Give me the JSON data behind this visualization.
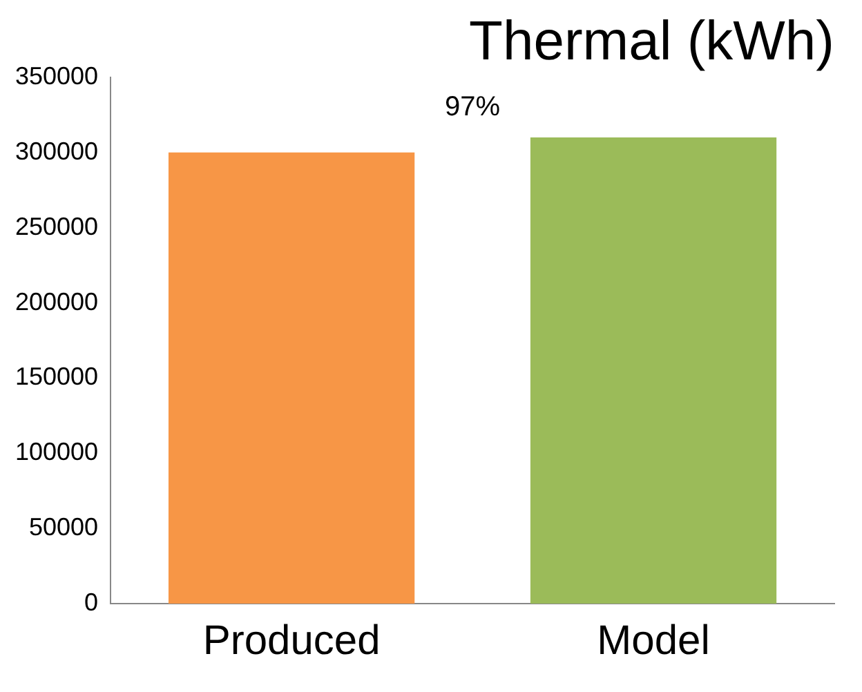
{
  "chart_data": {
    "type": "bar",
    "title": "Thermal (kWh)",
    "categories": [
      "Produced",
      "Model"
    ],
    "values": [
      300000,
      310000
    ],
    "colors": [
      "#f79646",
      "#9bbb59"
    ],
    "ylim": [
      0,
      350000
    ],
    "yticks": [
      0,
      50000,
      100000,
      150000,
      200000,
      250000,
      300000,
      350000
    ],
    "grid": false,
    "legend": false,
    "annotations": [
      "97%"
    ]
  }
}
